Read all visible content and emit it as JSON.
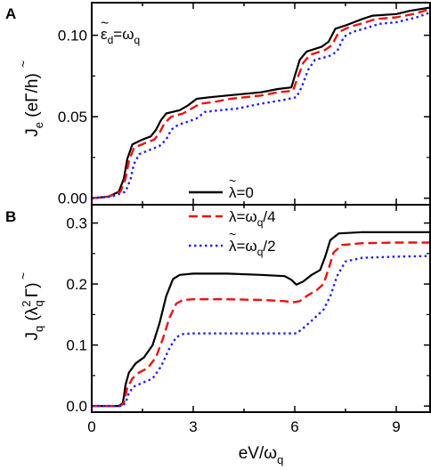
{
  "chart_data": [
    {
      "type": "line",
      "panel": "A",
      "ylabel": "J_e (eΓ̃/h)",
      "ylim": [
        -0.004,
        0.12
      ],
      "xlim": [
        0,
        10
      ],
      "yticks": [
        0.0,
        0.05,
        0.1
      ],
      "ytick_labels": [
        "0.00",
        "0.05",
        "0.10"
      ],
      "annotation": "ε̃_d=ω_q",
      "series": [
        {
          "name": "λ̃=0",
          "color": "#000000",
          "style": "solid",
          "points": [
            [
              0,
              0
            ],
            [
              0.5,
              0.001
            ],
            [
              0.8,
              0.004
            ],
            [
              0.95,
              0.012
            ],
            [
              1.05,
              0.024
            ],
            [
              1.2,
              0.033
            ],
            [
              1.5,
              0.036
            ],
            [
              1.75,
              0.038
            ],
            [
              1.9,
              0.042
            ],
            [
              2.05,
              0.048
            ],
            [
              2.2,
              0.052
            ],
            [
              2.6,
              0.054
            ],
            [
              2.85,
              0.057
            ],
            [
              3.1,
              0.061
            ],
            [
              3.5,
              0.062
            ],
            [
              4,
              0.063
            ],
            [
              5,
              0.065
            ],
            [
              5.5,
              0.067
            ],
            [
              5.9,
              0.068
            ],
            [
              6.0,
              0.075
            ],
            [
              6.15,
              0.085
            ],
            [
              6.35,
              0.09
            ],
            [
              6.8,
              0.093
            ],
            [
              7.0,
              0.096
            ],
            [
              7.2,
              0.104
            ],
            [
              7.5,
              0.106
            ],
            [
              8.0,
              0.11
            ],
            [
              8.3,
              0.112
            ],
            [
              9,
              0.113
            ],
            [
              9.4,
              0.115
            ],
            [
              10,
              0.117
            ]
          ]
        },
        {
          "name": "λ̃=ω_q/4",
          "color": "#ee1111",
          "style": "dashed",
          "points": [
            [
              0,
              0
            ],
            [
              0.5,
              0.001
            ],
            [
              0.85,
              0.004
            ],
            [
              1.0,
              0.012
            ],
            [
              1.1,
              0.023
            ],
            [
              1.25,
              0.031
            ],
            [
              1.6,
              0.034
            ],
            [
              1.85,
              0.036
            ],
            [
              2.0,
              0.04
            ],
            [
              2.15,
              0.046
            ],
            [
              2.35,
              0.05
            ],
            [
              2.7,
              0.052
            ],
            [
              2.95,
              0.055
            ],
            [
              3.2,
              0.058
            ],
            [
              3.6,
              0.059
            ],
            [
              4.1,
              0.061
            ],
            [
              5,
              0.063
            ],
            [
              5.5,
              0.065
            ],
            [
              5.95,
              0.066
            ],
            [
              6.05,
              0.072
            ],
            [
              6.25,
              0.083
            ],
            [
              6.45,
              0.088
            ],
            [
              6.9,
              0.091
            ],
            [
              7.1,
              0.094
            ],
            [
              7.3,
              0.102
            ],
            [
              7.6,
              0.105
            ],
            [
              8.1,
              0.108
            ],
            [
              8.4,
              0.11
            ],
            [
              9,
              0.111
            ],
            [
              9.5,
              0.113
            ],
            [
              10,
              0.116
            ]
          ]
        },
        {
          "name": "λ̃=ω_q/2",
          "color": "#2222ee",
          "style": "dotted",
          "points": [
            [
              0,
              0
            ],
            [
              0.6,
              0.001
            ],
            [
              1.0,
              0.004
            ],
            [
              1.15,
              0.012
            ],
            [
              1.25,
              0.021
            ],
            [
              1.4,
              0.027
            ],
            [
              1.75,
              0.03
            ],
            [
              2.0,
              0.032
            ],
            [
              2.2,
              0.036
            ],
            [
              2.35,
              0.042
            ],
            [
              2.55,
              0.045
            ],
            [
              2.85,
              0.047
            ],
            [
              3.1,
              0.049
            ],
            [
              3.35,
              0.053
            ],
            [
              3.8,
              0.054
            ],
            [
              4.3,
              0.055
            ],
            [
              5,
              0.058
            ],
            [
              5.6,
              0.06
            ],
            [
              6.05,
              0.062
            ],
            [
              6.2,
              0.068
            ],
            [
              6.4,
              0.079
            ],
            [
              6.6,
              0.085
            ],
            [
              7.0,
              0.087
            ],
            [
              7.25,
              0.09
            ],
            [
              7.45,
              0.099
            ],
            [
              7.7,
              0.102
            ],
            [
              8.2,
              0.105
            ],
            [
              8.5,
              0.107
            ],
            [
              9,
              0.108
            ],
            [
              9.6,
              0.111
            ],
            [
              10,
              0.114
            ]
          ]
        }
      ]
    },
    {
      "type": "line",
      "panel": "B",
      "xlabel": "eV/ω_q",
      "ylabel": "J_q (λ_q² Γ̃)",
      "xlim": [
        0,
        10
      ],
      "ylim": [
        -0.01,
        0.33
      ],
      "xticks": [
        0,
        3,
        6,
        9
      ],
      "xtick_labels": [
        "0",
        "3",
        "6",
        "9"
      ],
      "yticks": [
        0.0,
        0.1,
        0.2,
        0.3
      ],
      "ytick_labels": [
        "0.0",
        "0.1",
        "0.2",
        "0.3"
      ],
      "legend_position": "top-center",
      "series": [
        {
          "name": "λ̃=0",
          "color": "#000000",
          "style": "solid",
          "points": [
            [
              0,
              0
            ],
            [
              0.8,
              0
            ],
            [
              0.92,
              0.005
            ],
            [
              1.0,
              0.035
            ],
            [
              1.1,
              0.055
            ],
            [
              1.3,
              0.07
            ],
            [
              1.55,
              0.08
            ],
            [
              1.8,
              0.1
            ],
            [
              2.0,
              0.135
            ],
            [
              2.2,
              0.18
            ],
            [
              2.4,
              0.208
            ],
            [
              2.6,
              0.215
            ],
            [
              3,
              0.217
            ],
            [
              4,
              0.217
            ],
            [
              5,
              0.215
            ],
            [
              5.7,
              0.213
            ],
            [
              5.9,
              0.207
            ],
            [
              6.05,
              0.199
            ],
            [
              6.25,
              0.204
            ],
            [
              6.5,
              0.215
            ],
            [
              6.75,
              0.223
            ],
            [
              6.9,
              0.245
            ],
            [
              7.05,
              0.272
            ],
            [
              7.3,
              0.283
            ],
            [
              8,
              0.285
            ],
            [
              9,
              0.285
            ],
            [
              10,
              0.285
            ]
          ]
        },
        {
          "name": "λ̃=ω_q/4",
          "color": "#ee1111",
          "style": "dashed",
          "points": [
            [
              0,
              0
            ],
            [
              0.85,
              0
            ],
            [
              0.95,
              0.005
            ],
            [
              1.05,
              0.03
            ],
            [
              1.2,
              0.045
            ],
            [
              1.4,
              0.055
            ],
            [
              1.65,
              0.062
            ],
            [
              1.9,
              0.08
            ],
            [
              2.1,
              0.11
            ],
            [
              2.3,
              0.145
            ],
            [
              2.5,
              0.168
            ],
            [
              2.7,
              0.174
            ],
            [
              3,
              0.175
            ],
            [
              4,
              0.175
            ],
            [
              5,
              0.174
            ],
            [
              5.7,
              0.172
            ],
            [
              5.95,
              0.17
            ],
            [
              6.15,
              0.172
            ],
            [
              6.4,
              0.182
            ],
            [
              6.65,
              0.19
            ],
            [
              6.85,
              0.2
            ],
            [
              7.0,
              0.225
            ],
            [
              7.15,
              0.252
            ],
            [
              7.4,
              0.264
            ],
            [
              8,
              0.267
            ],
            [
              9,
              0.268
            ],
            [
              10,
              0.268
            ]
          ]
        },
        {
          "name": "λ̃=ω_q/2",
          "color": "#2222ee",
          "style": "dotted",
          "points": [
            [
              0,
              0
            ],
            [
              0.9,
              0
            ],
            [
              1.0,
              0.005
            ],
            [
              1.1,
              0.022
            ],
            [
              1.25,
              0.032
            ],
            [
              1.5,
              0.038
            ],
            [
              1.8,
              0.045
            ],
            [
              2.05,
              0.065
            ],
            [
              2.3,
              0.095
            ],
            [
              2.5,
              0.113
            ],
            [
              2.7,
              0.118
            ],
            [
              3,
              0.119
            ],
            [
              4,
              0.119
            ],
            [
              5,
              0.119
            ],
            [
              6.05,
              0.119
            ],
            [
              6.3,
              0.13
            ],
            [
              6.6,
              0.145
            ],
            [
              6.85,
              0.158
            ],
            [
              7.05,
              0.18
            ],
            [
              7.25,
              0.213
            ],
            [
              7.5,
              0.237
            ],
            [
              8,
              0.243
            ],
            [
              9,
              0.245
            ],
            [
              10,
              0.246
            ]
          ]
        }
      ]
    }
  ],
  "labels": {
    "panel_a": "A",
    "panel_b": "B",
    "ylabel_a_prefix": "J",
    "ylabel_a_sub": "e",
    "ylabel_a_rest": " (eΓ/h)",
    "ylabel_b_prefix": "J",
    "ylabel_b_sub": "q",
    "ylabel_b_open": " (λ",
    "ylabel_b_sup": "2",
    "ylabel_b_sub2": "q",
    "ylabel_b_rest": "Γ)",
    "xlabel_prefix": "eV/ω",
    "xlabel_sub": "q",
    "annotation_main": "ε",
    "annotation_sub": "d",
    "annotation_eq": "=ω",
    "annotation_sub2": "q",
    "legend": [
      {
        "main": "λ=0",
        "sub": ""
      },
      {
        "main": "λ=ω",
        "sub": "q",
        "tail": "/4"
      },
      {
        "main": "λ=ω",
        "sub": "q",
        "tail": "/2"
      }
    ]
  }
}
